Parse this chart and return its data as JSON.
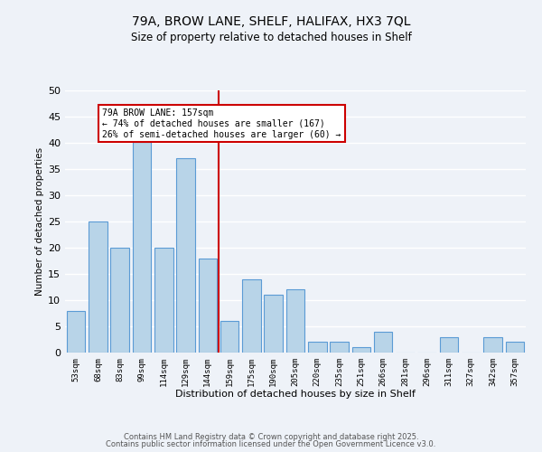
{
  "title": "79A, BROW LANE, SHELF, HALIFAX, HX3 7QL",
  "subtitle": "Size of property relative to detached houses in Shelf",
  "xlabel": "Distribution of detached houses by size in Shelf",
  "ylabel": "Number of detached properties",
  "categories": [
    "53sqm",
    "68sqm",
    "83sqm",
    "99sqm",
    "114sqm",
    "129sqm",
    "144sqm",
    "159sqm",
    "175sqm",
    "190sqm",
    "205sqm",
    "220sqm",
    "235sqm",
    "251sqm",
    "266sqm",
    "281sqm",
    "296sqm",
    "311sqm",
    "327sqm",
    "342sqm",
    "357sqm"
  ],
  "values": [
    8,
    25,
    20,
    42,
    20,
    37,
    18,
    6,
    14,
    11,
    12,
    2,
    2,
    1,
    4,
    0,
    0,
    3,
    0,
    3,
    2
  ],
  "bar_color": "#b8d4e8",
  "bar_edge_color": "#5b9bd5",
  "vline_idx": 7,
  "vline_color": "#cc0000",
  "annotation_title": "79A BROW LANE: 157sqm",
  "annotation_line1": "← 74% of detached houses are smaller (167)",
  "annotation_line2": "26% of semi-detached houses are larger (60) →",
  "annotation_box_color": "#ffffff",
  "annotation_box_edge": "#cc0000",
  "ylim": [
    0,
    50
  ],
  "yticks": [
    0,
    5,
    10,
    15,
    20,
    25,
    30,
    35,
    40,
    45,
    50
  ],
  "bg_color": "#eef2f8",
  "grid_color": "#ffffff",
  "footer1": "Contains HM Land Registry data © Crown copyright and database right 2025.",
  "footer2": "Contains public sector information licensed under the Open Government Licence v3.0."
}
